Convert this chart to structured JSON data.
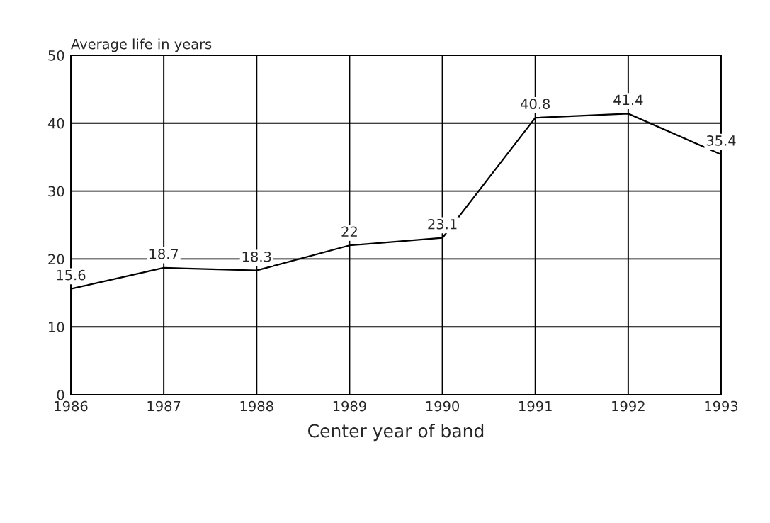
{
  "chart_data": {
    "type": "line",
    "ylabel": "Average life in years",
    "xlabel": "Center year of band",
    "x": [
      1986,
      1987,
      1988,
      1989,
      1990,
      1991,
      1992,
      1993
    ],
    "series": [
      {
        "color": "#000000",
        "values": [
          15.6,
          18.7,
          18.3,
          22,
          23.1,
          40.8,
          41.4,
          35.4
        ]
      }
    ],
    "xlim": [
      1986,
      1993
    ],
    "xticks": [
      1986,
      1987,
      1988,
      1989,
      1990,
      1991,
      1992,
      1993
    ],
    "ylim": [
      0,
      50
    ],
    "yticks": [
      0,
      10,
      20,
      30,
      40,
      50
    ],
    "grid": true,
    "data_labels": true,
    "legend": false,
    "marker": "none",
    "line_style": "solid"
  }
}
